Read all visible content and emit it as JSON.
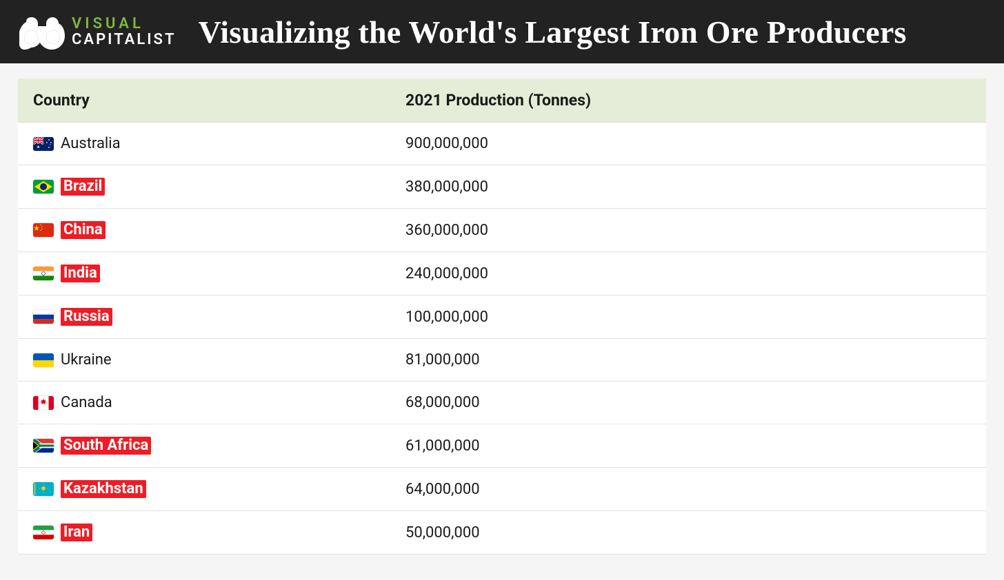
{
  "header": {
    "logo_top": "VISUAL",
    "logo_bottom": "CAPITALIST",
    "title": "Visualizing the World's Largest Iron Ore Producers"
  },
  "colors": {
    "header_bg": "#222222",
    "accent_green": "#7fb841",
    "title_color": "#ffffff",
    "thead_bg": "#e5edd8",
    "row_border": "#e3e3e3",
    "text": "#1a1a1a",
    "highlight_bg": "#ee1c25",
    "highlight_text": "#ffffff",
    "page_bg": "#f5f5f5"
  },
  "table": {
    "type": "table",
    "columns": [
      "Country",
      "2021 Production (Tonnes)"
    ],
    "rows": [
      {
        "flag": "au",
        "country": "Australia",
        "highlight": false,
        "production": "900,000,000"
      },
      {
        "flag": "br",
        "country": "Brazil",
        "highlight": true,
        "production": "380,000,000"
      },
      {
        "flag": "cn",
        "country": "China",
        "highlight": true,
        "production": "360,000,000"
      },
      {
        "flag": "in",
        "country": "India",
        "highlight": true,
        "production": "240,000,000"
      },
      {
        "flag": "ru",
        "country": "Russia",
        "highlight": true,
        "production": "100,000,000"
      },
      {
        "flag": "ua",
        "country": "Ukraine",
        "highlight": false,
        "production": "81,000,000"
      },
      {
        "flag": "ca",
        "country": "Canada",
        "highlight": false,
        "production": "68,000,000"
      },
      {
        "flag": "za",
        "country": "South Africa",
        "highlight": true,
        "production": "61,000,000"
      },
      {
        "flag": "kz",
        "country": "Kazakhstan",
        "highlight": true,
        "production": "64,000,000"
      },
      {
        "flag": "ir",
        "country": "Iran",
        "highlight": true,
        "production": "50,000,000"
      }
    ]
  }
}
